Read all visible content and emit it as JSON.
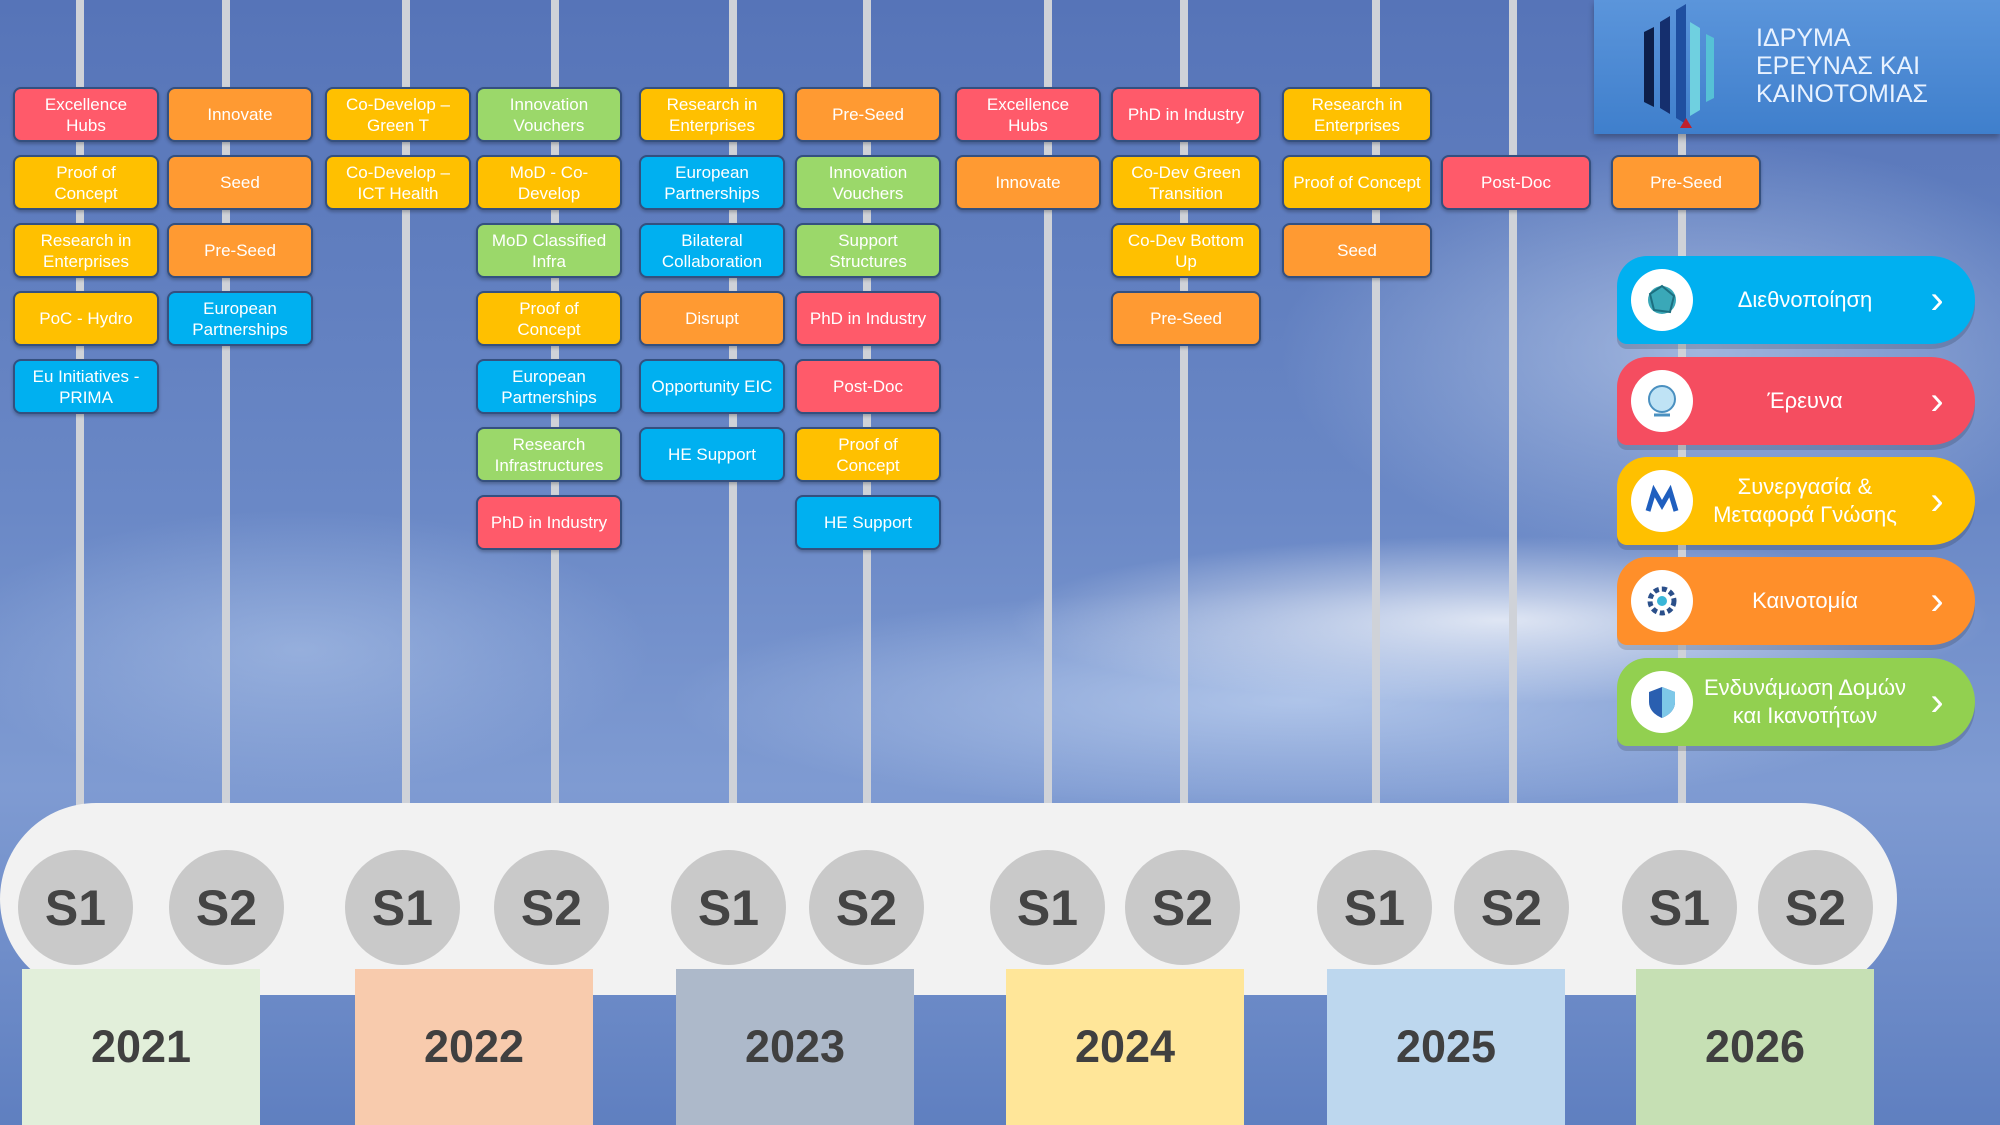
{
  "colors": {
    "red": "#ff5a6a",
    "orange": "#ff9a32",
    "yellow": "#ffc000",
    "green": "#9bd86a",
    "blue": "#00b0f0"
  },
  "logo": {
    "text": "ΙΔΡΥΜΑ\nΕΡΕΥΝΑΣ ΚΑΙ\nΚΑΙΝΟΤΟΜΙΑΣ"
  },
  "categories": [
    {
      "label": "Διεθνοποίηση",
      "color": "#00b0f0",
      "icon": "network-globe-icon"
    },
    {
      "label": "Έρευνα",
      "color": "#f54d60",
      "icon": "research-globe-icon"
    },
    {
      "label": "Συνεργασία &\nΜεταφορά Γνώσης",
      "color": "#ffc000",
      "icon": "collaboration-icon"
    },
    {
      "label": "Καινοτομία",
      "color": "#ff8f2a",
      "icon": "innovation-gear-icon"
    },
    {
      "label": "Ενδυνάμωση Δομών\nκαι Ικανοτήτων",
      "color": "#92d050",
      "icon": "shield-icon"
    }
  ],
  "years": [
    {
      "year": "2021",
      "color": "#e2efda",
      "semesters": [
        "S1",
        "S2"
      ]
    },
    {
      "year": "2022",
      "color": "#f8cbad",
      "semesters": [
        "S1",
        "S2"
      ]
    },
    {
      "year": "2023",
      "color": "#adb9ca",
      "semesters": [
        "S1",
        "S2"
      ]
    },
    {
      "year": "2024",
      "color": "#ffe699",
      "semesters": [
        "S1",
        "S2"
      ]
    },
    {
      "year": "2025",
      "color": "#bdd7ee",
      "semesters": [
        "S1",
        "S2"
      ]
    },
    {
      "year": "2026",
      "color": "#c6e0b4",
      "semesters": [
        "S1",
        "S2"
      ]
    }
  ],
  "columns": [
    {
      "period": "2021 S1",
      "cards": [
        {
          "label": "Excellence Hubs",
          "type": "red"
        },
        {
          "label": "Proof of Concept",
          "type": "yellow"
        },
        {
          "label": "Research in Enterprises",
          "type": "yellow"
        },
        {
          "label": "PoC - Hydro",
          "type": "yellow"
        },
        {
          "label": "Eu Initiatives - PRIMA",
          "type": "blue"
        }
      ]
    },
    {
      "period": "2021 S2",
      "cards": [
        {
          "label": "Innovate",
          "type": "orange"
        },
        {
          "label": "Seed",
          "type": "orange"
        },
        {
          "label": "Pre-Seed",
          "type": "orange"
        },
        {
          "label": "European Partnerships",
          "type": "blue"
        }
      ]
    },
    {
      "period": "2022 S1",
      "cards": [
        {
          "label": "Co-Develop – Green T",
          "type": "yellow"
        },
        {
          "label": "Co-Develop – ICT Health",
          "type": "yellow"
        }
      ]
    },
    {
      "period": "2022 S2",
      "cards": [
        {
          "label": "Innovation Vouchers",
          "type": "green"
        },
        {
          "label": "MoD - Co-Develop",
          "type": "yellow"
        },
        {
          "label": "MoD Classified Infra",
          "type": "green"
        },
        {
          "label": "Proof of Concept",
          "type": "yellow"
        },
        {
          "label": "European Partnerships",
          "type": "blue"
        },
        {
          "label": "Research Infrastructures",
          "type": "green"
        },
        {
          "label": "PhD in Industry",
          "type": "red"
        }
      ]
    },
    {
      "period": "2023 S1",
      "cards": [
        {
          "label": "Research in Enterprises",
          "type": "yellow"
        },
        {
          "label": "European Partnerships",
          "type": "blue"
        },
        {
          "label": "Bilateral Collaboration",
          "type": "blue"
        },
        {
          "label": "Disrupt",
          "type": "orange"
        },
        {
          "label": "Opportunity EIC",
          "type": "blue"
        },
        {
          "label": "HE Support",
          "type": "blue"
        }
      ]
    },
    {
      "period": "2023 S2",
      "cards": [
        {
          "label": "Pre-Seed",
          "type": "orange"
        },
        {
          "label": "Innovation Vouchers",
          "type": "green"
        },
        {
          "label": "Support Structures",
          "type": "green"
        },
        {
          "label": "PhD in Industry",
          "type": "red"
        },
        {
          "label": "Post-Doc",
          "type": "red"
        },
        {
          "label": "Proof of Concept",
          "type": "yellow"
        },
        {
          "label": "HE Support",
          "type": "blue"
        }
      ]
    },
    {
      "period": "2024 S1",
      "cards": [
        {
          "label": "Excellence Hubs",
          "type": "red"
        },
        {
          "label": "Innovate",
          "type": "orange"
        }
      ]
    },
    {
      "period": "2024 S2",
      "cards": [
        {
          "label": "PhD in Industry",
          "type": "red"
        },
        {
          "label": "Co-Dev Green Transition",
          "type": "yellow"
        },
        {
          "label": "Co-Dev Bottom Up",
          "type": "yellow"
        },
        {
          "label": "Pre-Seed",
          "type": "orange"
        }
      ]
    },
    {
      "period": "2025 S1",
      "cards": [
        {
          "label": "Research in Enterprises",
          "type": "yellow"
        },
        {
          "label": "Proof of Concept",
          "type": "yellow"
        },
        {
          "label": "Seed",
          "type": "orange"
        }
      ]
    },
    {
      "period": "2025 S2",
      "cards": [
        null,
        {
          "label": "Post-Doc",
          "type": "red"
        }
      ]
    },
    {
      "period": "2026 S1",
      "cards": [
        null,
        {
          "label": "Pre-Seed",
          "type": "orange"
        }
      ]
    }
  ]
}
